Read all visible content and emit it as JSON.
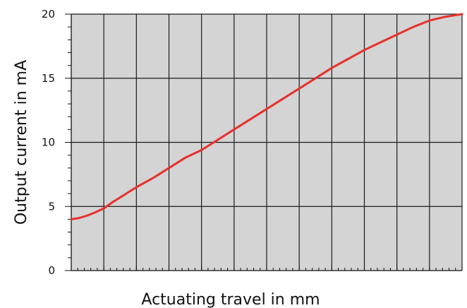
{
  "chart_data": {
    "type": "line",
    "title": "",
    "xlabel": "Actuating travel in mm",
    "ylabel": "Output current in mA",
    "xlim": [
      0,
      12
    ],
    "ylim": [
      0,
      20
    ],
    "x_major_divisions": 12,
    "y_ticks": [
      0,
      5,
      10,
      15,
      20
    ],
    "y_tick_labels": [
      "0",
      "5",
      "10",
      "15",
      "20"
    ],
    "grid": true,
    "plot_background": "#d4d4d4",
    "grid_color": "#1a1a1a",
    "line_color": "#e8302c",
    "series": [
      {
        "x": [
          0,
          0.25,
          0.5,
          0.75,
          1,
          1.25,
          1.5,
          2,
          2.5,
          3,
          3.5,
          4,
          4.5,
          5,
          5.5,
          6,
          6.5,
          7,
          7.5,
          8,
          8.5,
          9,
          9.5,
          10,
          10.5,
          11,
          11.5,
          11.75,
          12
        ],
        "y": [
          4.0,
          4.1,
          4.3,
          4.55,
          4.85,
          5.3,
          5.7,
          6.5,
          7.2,
          8.0,
          8.8,
          9.4,
          10.2,
          11.0,
          11.8,
          12.6,
          13.4,
          14.2,
          15.0,
          15.8,
          16.5,
          17.2,
          17.8,
          18.4,
          19.0,
          19.5,
          19.8,
          19.9,
          20.0
        ]
      }
    ]
  }
}
